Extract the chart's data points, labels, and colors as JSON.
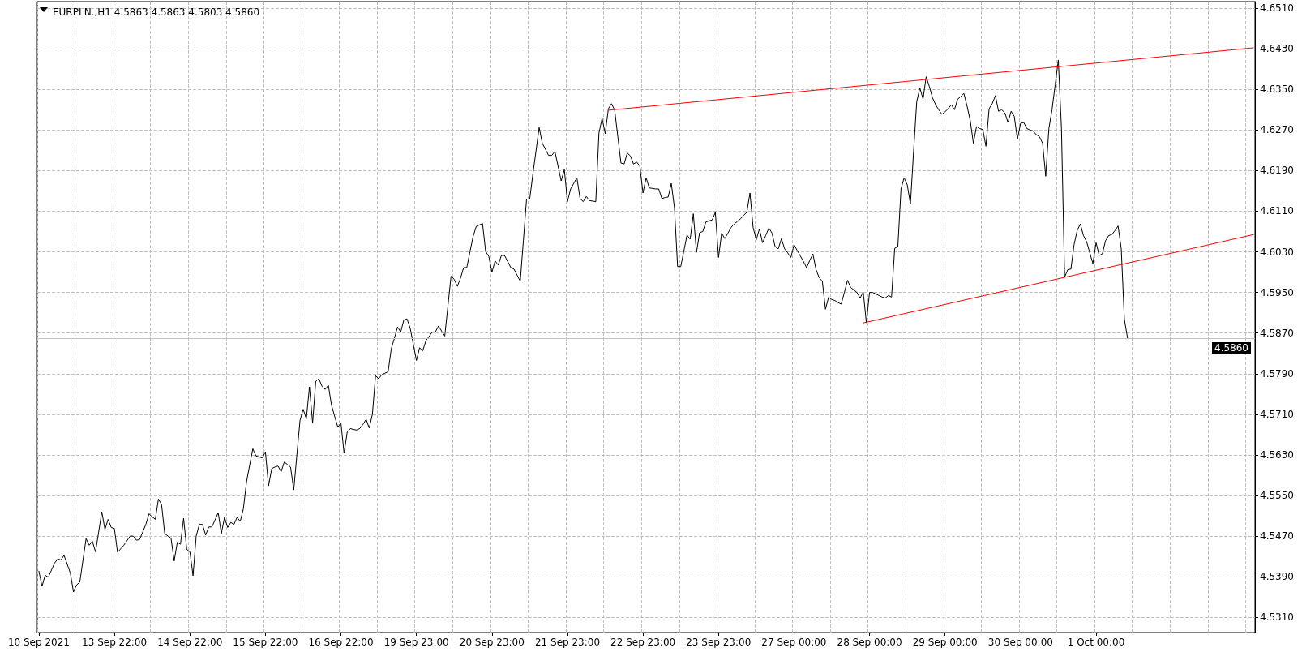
{
  "chart_data": {
    "type": "line",
    "title": "EURPLN.,H1 4.5863 4.5863 4.5803 4.5860",
    "categories": [
      "10 Sep 2021",
      null,
      null,
      null,
      null,
      null,
      null,
      null,
      null,
      null,
      null,
      null,
      null,
      null,
      null,
      null,
      null,
      null,
      null,
      null,
      null,
      null,
      null,
      null,
      "13 Sep 22:00",
      null,
      null,
      null,
      null,
      null,
      null,
      null,
      null,
      null,
      null,
      null,
      null,
      null,
      null,
      null,
      null,
      null,
      null,
      null,
      null,
      null,
      null,
      null,
      "14 Sep 22:00",
      null,
      null,
      null,
      null,
      null,
      null,
      null,
      null,
      null,
      null,
      null,
      null,
      null,
      null,
      null,
      null,
      null,
      null,
      null,
      null,
      null,
      null,
      null,
      "15 Sep 22:00",
      null,
      null,
      null,
      null,
      null,
      null,
      null,
      null,
      null,
      null,
      null,
      null,
      null,
      null,
      null,
      null,
      null,
      null,
      null,
      null,
      null,
      null,
      null,
      "16 Sep 22:00",
      null,
      null,
      null,
      null,
      null,
      null,
      null,
      null,
      null,
      null,
      null,
      null,
      null,
      null,
      null,
      null,
      null,
      null,
      null,
      null,
      null,
      null,
      null,
      "19 Sep 23:00",
      null,
      null,
      null,
      null,
      null,
      null,
      null,
      null,
      null,
      null,
      null,
      null,
      null,
      null,
      null,
      null,
      null,
      null,
      null,
      null,
      null,
      null,
      null,
      "20 Sep 23:00",
      null,
      null,
      null,
      null,
      null,
      null,
      null,
      null,
      null,
      null,
      null,
      null,
      null,
      null,
      null,
      null,
      null,
      null,
      null,
      null,
      null,
      null,
      null,
      "21 Sep 23:00",
      null,
      null,
      null,
      null,
      null,
      null,
      null,
      null,
      null,
      null,
      null,
      null,
      null,
      null,
      null,
      null,
      null,
      null,
      null,
      null,
      null,
      null,
      null,
      "22 Sep 23:00",
      null,
      null,
      null,
      null,
      null,
      null,
      null,
      null,
      null,
      null,
      null,
      null,
      null,
      null,
      null,
      null,
      null,
      null,
      null,
      null,
      null,
      null,
      null,
      "23 Sep 23:00",
      null,
      null,
      null,
      null,
      null,
      null,
      null,
      null,
      null,
      null,
      null,
      null,
      null,
      null,
      null,
      null,
      null,
      null,
      null,
      null,
      null,
      null,
      null,
      "27 Sep 00:00",
      null,
      null,
      null,
      null,
      null,
      null,
      null,
      null,
      null,
      null,
      null,
      null,
      null,
      null,
      null,
      null,
      null,
      null,
      null,
      null,
      null,
      null,
      null,
      "28 Sep 00:00",
      null,
      null,
      null,
      null,
      null,
      null,
      null,
      null,
      null,
      null,
      null,
      null,
      null,
      null,
      null,
      null,
      null,
      null,
      null,
      null,
      null,
      null,
      null,
      "29 Sep 00:00",
      null,
      null,
      null,
      null,
      null,
      null,
      null,
      null,
      null,
      null,
      null,
      null,
      null,
      null,
      null,
      null,
      null,
      null,
      null,
      null,
      null,
      null,
      null,
      "30 Sep 00:00",
      null,
      null,
      null,
      null,
      null,
      null,
      null,
      null,
      null,
      null,
      null,
      null,
      null,
      null,
      null,
      null,
      null,
      null,
      null,
      null,
      null,
      null,
      null,
      "1 Oct 00:00",
      null,
      null,
      null,
      null,
      null,
      null,
      null,
      null,
      null,
      null,
      null,
      null,
      null,
      null,
      null,
      null,
      null,
      null,
      null,
      null,
      null,
      null,
      null,
      null,
      null,
      null,
      null,
      null,
      null,
      null,
      null,
      null,
      null,
      null,
      null,
      null,
      null,
      null,
      null,
      null,
      null,
      null,
      null,
      null,
      null,
      null,
      null,
      null,
      null,
      null
    ],
    "series": [
      {
        "color": "#000000",
        "values": [
          4.5401,
          4.5371,
          4.5393,
          4.5389,
          4.5403,
          4.5417,
          4.5425,
          4.5423,
          4.5432,
          4.5415,
          4.5397,
          4.536,
          4.5374,
          4.5379,
          4.5422,
          4.5465,
          4.5452,
          4.546,
          4.5439,
          4.5478,
          4.5518,
          4.5483,
          4.5503,
          4.5487,
          4.5485,
          4.5438,
          4.5445,
          4.5452,
          4.5461,
          4.547,
          4.547,
          4.5462,
          4.5463,
          4.5478,
          4.5493,
          4.5514,
          4.5508,
          4.5503,
          4.5543,
          4.5532,
          4.5475,
          4.547,
          4.5466,
          4.5421,
          4.5458,
          4.5454,
          4.5505,
          4.5444,
          4.5439,
          4.5392,
          4.547,
          4.5493,
          4.5493,
          4.5472,
          4.5488,
          4.5488,
          4.5502,
          4.5516,
          4.5475,
          4.5507,
          4.5487,
          4.5497,
          4.5493,
          4.5507,
          4.5499,
          4.5524,
          4.5577,
          4.561,
          4.5642,
          4.5628,
          4.5626,
          4.5624,
          4.5636,
          4.5569,
          4.5603,
          4.5606,
          4.5608,
          4.5597,
          4.5616,
          4.5611,
          4.5606,
          4.5561,
          4.563,
          4.5698,
          4.572,
          4.5701,
          4.5764,
          4.5693,
          4.5775,
          4.578,
          4.5765,
          4.5759,
          4.5767,
          4.5728,
          4.5706,
          4.5685,
          4.5693,
          4.5633,
          4.5675,
          4.5682,
          4.568,
          4.5679,
          4.5682,
          4.569,
          4.57,
          4.5683,
          4.571,
          4.5786,
          4.578,
          4.5788,
          4.5791,
          4.5794,
          4.5839,
          4.586,
          4.5882,
          4.5872,
          4.5896,
          4.5898,
          4.588,
          4.5848,
          4.5816,
          4.5841,
          4.5835,
          4.5855,
          4.5863,
          4.5872,
          4.5872,
          4.5884,
          4.5874,
          4.5864,
          4.5923,
          4.5982,
          4.5976,
          4.5962,
          4.5978,
          4.5999,
          4.5999,
          4.603,
          4.606,
          4.608,
          4.6083,
          4.6086,
          4.6031,
          4.6021,
          4.599,
          4.6012,
          4.6004,
          4.6023,
          4.6023,
          4.6011,
          4.5999,
          4.5996,
          4.5984,
          4.5972,
          4.6053,
          4.6134,
          4.6134,
          4.6183,
          4.6229,
          4.6275,
          4.6244,
          4.6232,
          4.622,
          4.622,
          4.6228,
          4.6199,
          4.617,
          4.6192,
          4.6129,
          4.6154,
          4.6165,
          4.6176,
          4.6135,
          4.6129,
          4.6139,
          4.6131,
          4.613,
          4.6129,
          4.6264,
          4.6293,
          4.6263,
          4.6312,
          4.6322,
          4.6309,
          4.6257,
          4.6205,
          4.6203,
          4.6225,
          4.6219,
          4.6203,
          4.6207,
          4.6199,
          4.6146,
          4.6176,
          4.6156,
          4.6155,
          4.6154,
          4.6154,
          4.6135,
          4.6137,
          4.6138,
          4.6165,
          4.6117,
          4.6001,
          4.6001,
          4.6032,
          4.6063,
          4.6055,
          4.6105,
          4.6029,
          4.6068,
          4.607,
          4.6089,
          4.6091,
          4.6093,
          4.6108,
          4.6019,
          4.6067,
          4.6056,
          4.6067,
          4.6078,
          4.6085,
          4.609,
          4.6095,
          4.6102,
          4.6108,
          4.6146,
          4.6078,
          4.6054,
          4.6075,
          4.6048,
          4.6062,
          4.6077,
          4.6067,
          4.604,
          4.6036,
          4.6056,
          4.6036,
          4.6028,
          4.6019,
          4.6044,
          4.6033,
          4.6022,
          4.6011,
          4.5999,
          4.6013,
          4.6026,
          4.5995,
          4.5979,
          4.5972,
          4.5917,
          4.5941,
          4.5936,
          4.5934,
          4.593,
          4.5927,
          4.595,
          4.5974,
          4.596,
          4.5955,
          4.595,
          4.5939,
          4.5951,
          4.589,
          4.595,
          4.595,
          4.5947,
          4.5944,
          4.5941,
          4.5939,
          4.5944,
          4.5941,
          4.6037,
          4.604,
          4.6154,
          4.6176,
          4.6162,
          4.6124,
          4.6228,
          4.6326,
          4.6353,
          4.6331,
          4.6375,
          4.6356,
          4.6334,
          4.632,
          4.631,
          4.6301,
          4.6306,
          4.6312,
          4.632,
          4.631,
          4.6331,
          4.6336,
          4.6342,
          4.6317,
          4.6289,
          4.6244,
          4.6277,
          4.6273,
          4.6271,
          4.6238,
          4.6312,
          4.6322,
          4.6338,
          4.6307,
          4.631,
          4.6304,
          4.6285,
          4.6307,
          4.6297,
          4.6252,
          4.6283,
          4.6285,
          4.6273,
          4.627,
          4.6268,
          4.6261,
          4.6257,
          4.6244,
          4.6179,
          4.6273,
          4.631,
          4.6359,
          4.6408,
          4.6273,
          4.598,
          4.5995,
          4.5996,
          4.6044,
          4.6072,
          4.6085,
          4.6062,
          4.605,
          4.6028,
          4.6007,
          4.6048,
          4.6023,
          4.6026,
          4.6052,
          4.6062,
          4.6064,
          4.6072,
          4.6081,
          4.6036,
          4.5897,
          4.586,
          null,
          null,
          null,
          null,
          null,
          null,
          null,
          null,
          null,
          null,
          null,
          null,
          null,
          null,
          null,
          null,
          null,
          null,
          null,
          null,
          null,
          null,
          null,
          null,
          null,
          null,
          null,
          null,
          null,
          null,
          null,
          null,
          null,
          null,
          null,
          null,
          null,
          null,
          null,
          null
        ]
      },
      {
        "type": "line",
        "color": "#ff0000",
        "values": [
          null,
          null,
          null,
          null,
          null,
          null,
          null,
          null,
          null,
          null,
          null,
          null,
          null,
          null,
          null,
          null,
          null,
          null,
          null,
          null,
          null,
          null,
          null,
          null,
          null,
          null,
          null,
          null,
          null,
          null,
          null,
          null,
          null,
          null,
          null,
          null,
          null,
          null,
          null,
          null,
          null,
          null,
          null,
          null,
          null,
          null,
          null,
          null,
          null,
          null,
          null,
          null,
          null,
          null,
          null,
          null,
          null,
          null,
          null,
          null,
          null,
          null,
          null,
          null,
          null,
          null,
          null,
          null,
          null,
          null,
          null,
          null,
          null,
          null,
          null,
          null,
          null,
          null,
          null,
          null,
          null,
          null,
          null,
          null,
          null,
          null,
          null,
          null,
          null,
          null,
          null,
          null,
          null,
          null,
          null,
          null,
          null,
          null,
          null,
          null,
          null,
          null,
          null,
          null,
          null,
          null,
          null,
          null,
          null,
          null,
          null,
          null,
          null,
          null,
          null,
          null,
          null,
          null,
          null,
          null,
          null,
          null,
          null,
          null,
          null,
          null,
          null,
          null,
          null,
          null,
          null,
          null,
          null,
          null,
          null,
          null,
          null,
          null,
          null,
          null,
          null,
          null,
          null,
          null,
          null,
          null,
          null,
          null,
          null,
          null,
          null,
          null,
          null,
          null,
          null,
          null,
          null,
          null,
          null,
          null,
          null,
          null,
          null,
          null,
          null,
          null,
          null,
          null,
          null,
          null,
          null,
          null,
          null,
          null,
          null,
          null,
          null,
          null,
          null,
          null,
          null,
          4.6309,
          null,
          null,
          null,
          null,
          null,
          null,
          null,
          null,
          null,
          null,
          null,
          null,
          null,
          null,
          null,
          null,
          null,
          null,
          null,
          null,
          null,
          null,
          null,
          null,
          null,
          null,
          null,
          null,
          null,
          null,
          null,
          null,
          null,
          null,
          null,
          null,
          null,
          null,
          null,
          null,
          null,
          null,
          null,
          null,
          null,
          null,
          null,
          null,
          null,
          null,
          null,
          null,
          null,
          null,
          null,
          null,
          null,
          null,
          null,
          null,
          null,
          null,
          null,
          null,
          null,
          null,
          null,
          null,
          null,
          null,
          null,
          null,
          null,
          null,
          null,
          null,
          null,
          null,
          null,
          null,
          null,
          null,
          null,
          null,
          null,
          null,
          null,
          null,
          null,
          null,
          null,
          null,
          null,
          null,
          null,
          null,
          null,
          null,
          null,
          null,
          null,
          null,
          null,
          null,
          null,
          null,
          null,
          null,
          null,
          null,
          null,
          null,
          null,
          null,
          null,
          null,
          null,
          null,
          null,
          null,
          null,
          null,
          null,
          null,
          null,
          null,
          null,
          null,
          null,
          null,
          null,
          null,
          null,
          null,
          null,
          null,
          null,
          null,
          null,
          null,
          null,
          null,
          null,
          null,
          null,
          null,
          null,
          null,
          null,
          null,
          null,
          null,
          null,
          null,
          null,
          null,
          null,
          null,
          null,
          null,
          null,
          null,
          null,
          null,
          null,
          null,
          null,
          null,
          null,
          null,
          null,
          null,
          null,
          null,
          null,
          null,
          null,
          null,
          null,
          null,
          null,
          null,
          null,
          null,
          null,
          null,
          null,
          null,
          null,
          null,
          null,
          null,
          null,
          null,
          null,
          null,
          null,
          null,
          null,
          null,
          null,
          null,
          null,
          null,
          4.6432
        ]
      },
      {
        "type": "line",
        "color": "#ff0000",
        "values": [
          null,
          null,
          null,
          null,
          null,
          null,
          null,
          null,
          null,
          null,
          null,
          null,
          null,
          null,
          null,
          null,
          null,
          null,
          null,
          null,
          null,
          null,
          null,
          null,
          null,
          null,
          null,
          null,
          null,
          null,
          null,
          null,
          null,
          null,
          null,
          null,
          null,
          null,
          null,
          null,
          null,
          null,
          null,
          null,
          null,
          null,
          null,
          null,
          null,
          null,
          null,
          null,
          null,
          null,
          null,
          null,
          null,
          null,
          null,
          null,
          null,
          null,
          null,
          null,
          null,
          null,
          null,
          null,
          null,
          null,
          null,
          null,
          null,
          null,
          null,
          null,
          null,
          null,
          null,
          null,
          null,
          null,
          null,
          null,
          null,
          null,
          null,
          null,
          null,
          null,
          null,
          null,
          null,
          null,
          null,
          null,
          null,
          null,
          null,
          null,
          null,
          null,
          null,
          null,
          null,
          null,
          null,
          null,
          null,
          null,
          null,
          null,
          null,
          null,
          null,
          null,
          null,
          null,
          null,
          null,
          null,
          null,
          null,
          null,
          null,
          null,
          null,
          null,
          null,
          null,
          null,
          null,
          null,
          null,
          null,
          null,
          null,
          null,
          null,
          null,
          null,
          null,
          null,
          null,
          null,
          null,
          null,
          null,
          null,
          null,
          null,
          null,
          null,
          null,
          null,
          null,
          null,
          null,
          null,
          null,
          null,
          null,
          null,
          null,
          null,
          null,
          null,
          null,
          null,
          null,
          null,
          null,
          null,
          null,
          null,
          null,
          null,
          null,
          null,
          null,
          null,
          null,
          null,
          null,
          null,
          null,
          null,
          null,
          null,
          null,
          null,
          null,
          null,
          null,
          null,
          null,
          null,
          null,
          null,
          null,
          null,
          null,
          null,
          null,
          null,
          null,
          null,
          null,
          null,
          null,
          null,
          null,
          null,
          null,
          null,
          null,
          null,
          null,
          null,
          null,
          null,
          null,
          null,
          null,
          null,
          null,
          null,
          null,
          null,
          null,
          null,
          null,
          null,
          null,
          null,
          null,
          null,
          null,
          null,
          null,
          null,
          null,
          null,
          null,
          null,
          null,
          null,
          null,
          null,
          null,
          null,
          null,
          null,
          null,
          null,
          null,
          null,
          null,
          null,
          null,
          null,
          null,
          4.589,
          null,
          null,
          null,
          null,
          null,
          null,
          null,
          null,
          null,
          null,
          null,
          null,
          null,
          null,
          null,
          null,
          null,
          null,
          null,
          null,
          null,
          null,
          null,
          null,
          null,
          null,
          null,
          null,
          null,
          null,
          null,
          null,
          null,
          null,
          null,
          null,
          null,
          null,
          null,
          null,
          null,
          null,
          null,
          null,
          null,
          null,
          null,
          null,
          null,
          null,
          null,
          null,
          null,
          null,
          null,
          null,
          null,
          null,
          null,
          null,
          null,
          null,
          null,
          null,
          null,
          null,
          null,
          null,
          null,
          null,
          null,
          null,
          null,
          null,
          null,
          null,
          null,
          null,
          null,
          null,
          null,
          null,
          null,
          null,
          null,
          null,
          null,
          null,
          null,
          null,
          null,
          null,
          null,
          null,
          null,
          null,
          null,
          null,
          null,
          null,
          null,
          null,
          null,
          null,
          null,
          null,
          null,
          null,
          null,
          null,
          null,
          null,
          null,
          null,
          null,
          null,
          null,
          null,
          null,
          null,
          null,
          null,
          null,
          4.6064
        ]
      }
    ],
    "ylim": [
      4.528,
      4.6523
    ],
    "yticks": [
      {
        "value": 4.531,
        "label": "4.5310"
      },
      {
        "value": 4.539,
        "label": "4.5390"
      },
      {
        "value": 4.547,
        "label": "4.5470"
      },
      {
        "value": 4.555,
        "label": "4.5550"
      },
      {
        "value": 4.563,
        "label": "4.5630"
      },
      {
        "value": 4.571,
        "label": "4.5710"
      },
      {
        "value": 4.579,
        "label": "4.5790"
      },
      {
        "value": 4.587,
        "label": "4.5870"
      },
      {
        "value": 4.595,
        "label": "4.5950"
      },
      {
        "value": 4.603,
        "label": "4.6030"
      },
      {
        "value": 4.611,
        "label": "4.6110"
      },
      {
        "value": 4.619,
        "label": "4.6190"
      },
      {
        "value": 4.627,
        "label": "4.6270"
      },
      {
        "value": 4.635,
        "label": "4.6350"
      },
      {
        "value": 4.643,
        "label": "4.6430"
      },
      {
        "value": 4.651,
        "label": "4.6510"
      }
    ],
    "grid": true,
    "ref_lines": [
      {
        "axis": "y",
        "value": 4.586,
        "label": "4.5860",
        "color": "#c0c0c0"
      }
    ],
    "marker": "none",
    "line_style": "solid"
  }
}
